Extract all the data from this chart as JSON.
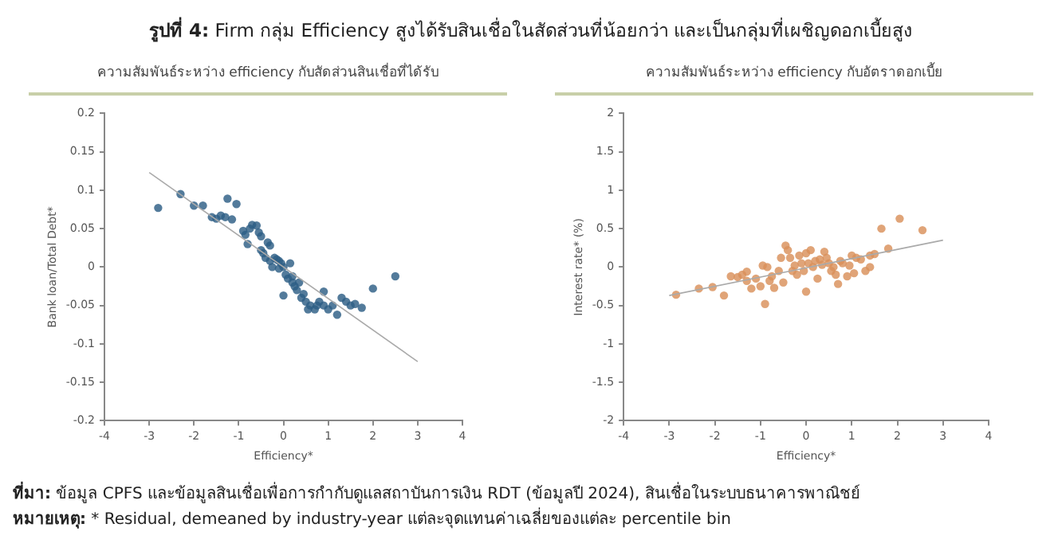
{
  "chart_data": [
    {
      "type": "other",
      "title": "รูปที่ 4: Firm กลุ่ม Efficiency สูงได้รับสินเชื่อในสัดส่วนที่น้อยกว่า และเป็นกลุ่มที่เผชิญดอกเบี้ยสูง",
      "annotations": [
        "ที่มา: ข้อมูล CPFS และข้อมูลสินเชื่อเพื่อการกำกับดูแลสถาบันการเงิน RDT (ข้อมูลปี 2024), สินเชื่อในระบบธนาคารพาณิชย์",
        "หมายเหตุ: * Residual, demeaned by industry-year แต่ละจุดแทนค่าเฉลี่ยของแต่ละ percentile bin"
      ]
    },
    {
      "type": "scatter",
      "title": "ความสัมพันธ์ระหว่าง efficiency กับสัดส่วนสินเชื่อที่ได้รับ",
      "xlabel": "Efficiency*",
      "ylabel": "Bank loan/Total Debt*",
      "xlim": [
        -4,
        4
      ],
      "xticks": [
        -4,
        -3,
        -2,
        -1,
        0,
        1,
        2,
        3,
        4
      ],
      "ylim": [
        -0.2,
        0.2
      ],
      "yticks": [
        -0.2,
        -0.15,
        -0.1,
        -0.05,
        0,
        0.05,
        0.1,
        0.15,
        0.2
      ],
      "grid": false,
      "legend": false,
      "series": [
        {
          "type": "scatter",
          "marker": "circle",
          "color": "#2c5d85",
          "x": [
            -2.8,
            -2.3,
            -2.0,
            -1.8,
            -1.6,
            -1.5,
            -1.4,
            -1.3,
            -1.25,
            -1.15,
            -1.05,
            -0.9,
            -0.85,
            -0.8,
            -0.75,
            -0.7,
            -0.6,
            -0.55,
            -0.5,
            -0.5,
            -0.45,
            -0.4,
            -0.35,
            -0.3,
            -0.3,
            -0.25,
            -0.2,
            -0.15,
            -0.1,
            -0.1,
            -0.05,
            0,
            0,
            0.05,
            0.1,
            0.15,
            0.2,
            0.2,
            0.25,
            0.3,
            0.35,
            0.4,
            0.45,
            0.5,
            0.55,
            0.6,
            0.7,
            0.75,
            0.8,
            0.9,
            0.9,
            1.0,
            1.1,
            1.2,
            1.3,
            1.4,
            1.5,
            1.6,
            1.75,
            2.0,
            2.5
          ],
          "values": [
            0.077,
            0.095,
            0.08,
            0.08,
            0.065,
            0.063,
            0.067,
            0.065,
            0.089,
            0.062,
            0.082,
            0.047,
            0.042,
            0.03,
            0.05,
            0.055,
            0.054,
            0.045,
            0.04,
            0.022,
            0.018,
            0.012,
            0.032,
            0.028,
            0.008,
            0.0,
            0.012,
            0.01,
            0.008,
            -0.002,
            0.005,
            0.0,
            -0.037,
            -0.01,
            -0.015,
            0.005,
            -0.02,
            -0.012,
            -0.025,
            -0.03,
            -0.02,
            -0.04,
            -0.035,
            -0.045,
            -0.055,
            -0.05,
            -0.055,
            -0.05,
            -0.045,
            -0.032,
            -0.05,
            -0.055,
            -0.05,
            -0.062,
            -0.04,
            -0.045,
            -0.05,
            -0.048,
            -0.053,
            -0.028,
            -0.012
          ]
        },
        {
          "type": "line",
          "marker": "none",
          "color": "#aaaaaa",
          "x": [
            -3,
            3
          ],
          "values": [
            0.123,
            -0.123
          ]
        }
      ]
    },
    {
      "type": "scatter",
      "title": "ความสัมพันธ์ระหว่าง efficiency กับอัตราดอกเบี้ย",
      "xlabel": "Efficiency*",
      "ylabel": "Interest rate* (%)",
      "xlim": [
        -4,
        4
      ],
      "xticks": [
        -4,
        -3,
        -2,
        -1,
        0,
        1,
        2,
        3,
        4
      ],
      "ylim": [
        -2,
        2
      ],
      "yticks": [
        -2,
        -1.5,
        -1,
        -0.5,
        0,
        0.5,
        1,
        1.5,
        2
      ],
      "grid": false,
      "legend": false,
      "series": [
        {
          "type": "scatter",
          "marker": "circle",
          "color": "#d9905a",
          "x": [
            -2.85,
            -2.35,
            -2.05,
            -1.8,
            -1.65,
            -1.5,
            -1.4,
            -1.3,
            -1.3,
            -1.2,
            -1.1,
            -1.0,
            -0.95,
            -0.9,
            -0.85,
            -0.8,
            -0.75,
            -0.7,
            -0.6,
            -0.55,
            -0.5,
            -0.45,
            -0.4,
            -0.35,
            -0.3,
            -0.25,
            -0.2,
            -0.15,
            -0.1,
            -0.05,
            0,
            0,
            0.05,
            0.1,
            0.15,
            0.2,
            0.25,
            0.3,
            0.35,
            0.4,
            0.45,
            0.5,
            0.55,
            0.6,
            0.65,
            0.7,
            0.75,
            0.8,
            0.9,
            0.95,
            1.0,
            1.05,
            1.1,
            1.2,
            1.3,
            1.4,
            1.4,
            1.5,
            1.65,
            1.8,
            2.05,
            2.55
          ],
          "values": [
            -0.36,
            -0.28,
            -0.26,
            -0.37,
            -0.12,
            -0.13,
            -0.1,
            -0.06,
            -0.18,
            -0.28,
            -0.15,
            -0.25,
            0.02,
            -0.48,
            0.0,
            -0.18,
            -0.12,
            -0.27,
            -0.05,
            0.12,
            -0.2,
            0.28,
            0.22,
            0.12,
            -0.05,
            0.02,
            -0.1,
            0.15,
            0.05,
            -0.05,
            0.18,
            -0.32,
            0.05,
            0.22,
            0.0,
            0.08,
            -0.15,
            0.1,
            0.03,
            0.2,
            0.12,
            0.05,
            -0.05,
            0.0,
            -0.1,
            -0.22,
            0.08,
            0.05,
            -0.12,
            0.02,
            0.15,
            -0.08,
            0.12,
            0.1,
            -0.05,
            0.15,
            0.0,
            0.17,
            0.5,
            0.24,
            0.63,
            0.48
          ]
        },
        {
          "type": "line",
          "marker": "none",
          "color": "#aaaaaa",
          "x": [
            -3,
            3
          ],
          "values": [
            -0.37,
            0.35
          ]
        }
      ]
    }
  ]
}
